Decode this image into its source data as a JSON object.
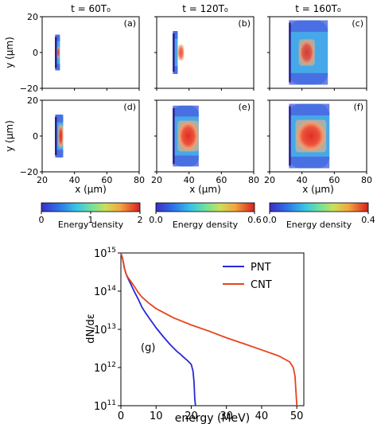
{
  "chart_data": [
    {
      "type": "heatmap",
      "columns": [
        {
          "title": "t = 60T₀",
          "colorbar": {
            "min_label": "0",
            "mid_label": "1",
            "max_label": "2",
            "label": "Energy density",
            "range": [
              0,
              2
            ]
          }
        },
        {
          "title": "t = 120T₀",
          "colorbar": {
            "min_label": "0.0",
            "max_label": "0.6",
            "label": "Energy density",
            "range": [
              0,
              0.6
            ]
          }
        },
        {
          "title": "t = 160T₀",
          "colorbar": {
            "min_label": "0.0",
            "max_label": "0.4",
            "label": "Energy density",
            "range": [
              0,
              0.4
            ]
          }
        }
      ],
      "panels": [
        {
          "label": "(a)",
          "row": 0,
          "col": 0,
          "target_x": [
            28,
            31
          ],
          "target_y": [
            -10,
            10
          ],
          "hot_x": [
            29,
            31
          ],
          "intensity": 0.45
        },
        {
          "label": "(b)",
          "row": 0,
          "col": 1,
          "target_x": [
            30,
            33
          ],
          "target_y": [
            -12,
            12
          ],
          "hot_x": [
            33,
            37
          ],
          "intensity": 0.6
        },
        {
          "label": "(c)",
          "row": 0,
          "col": 2,
          "target_x": [
            32,
            56
          ],
          "target_y": [
            -18,
            18
          ],
          "hot_x": [
            38,
            48
          ],
          "intensity": 0.75
        },
        {
          "label": "(d)",
          "row": 1,
          "col": 0,
          "target_x": [
            28,
            33
          ],
          "target_y": [
            -12,
            12
          ],
          "hot_x": [
            30,
            33
          ],
          "intensity": 0.95
        },
        {
          "label": "(e)",
          "row": 1,
          "col": 1,
          "target_x": [
            30,
            46
          ],
          "target_y": [
            -17,
            17
          ],
          "hot_x": [
            33,
            46
          ],
          "intensity": 0.95
        },
        {
          "label": "(f)",
          "row": 1,
          "col": 2,
          "target_x": [
            32,
            57
          ],
          "target_y": [
            -18,
            18
          ],
          "hot_x": [
            36,
            55
          ],
          "intensity": 0.95
        }
      ],
      "xlabel": "x (μm)",
      "ylabel": "y (μm)",
      "xlim": [
        20,
        80
      ],
      "ylim": [
        -20,
        20
      ],
      "xticks": [
        "20",
        "40",
        "60",
        "80"
      ],
      "yticks": [
        "20",
        "0",
        "−20"
      ]
    },
    {
      "type": "line",
      "label": "(g)",
      "xlabel": "energy (MeV)",
      "ylabel": "dN/dε",
      "xlim": [
        0,
        52
      ],
      "ylim": [
        100000000000.0,
        1000000000000000.0
      ],
      "yscale": "log",
      "xticks": [
        "0",
        "10",
        "20",
        "30",
        "40",
        "50"
      ],
      "yticks": [
        {
          "base": "10",
          "exp": "15"
        },
        {
          "base": "10",
          "exp": "14"
        },
        {
          "base": "10",
          "exp": "13"
        },
        {
          "base": "10",
          "exp": "12"
        },
        {
          "base": "10",
          "exp": "11"
        }
      ],
      "legend_position": "top-right",
      "series": [
        {
          "name": "PNT",
          "color": "#2828d6",
          "x": [
            0,
            0.5,
            1,
            1.5,
            2,
            3,
            4,
            5,
            6,
            7,
            8,
            10,
            12,
            14,
            16,
            17,
            18,
            19,
            20,
            20.5,
            20.8,
            21,
            21.2
          ],
          "y": [
            1000000000000000.0,
            700000000000000.0,
            400000000000000.0,
            280000000000000.0,
            220000000000000.0,
            140000000000000.0,
            90000000000000.0,
            60000000000000.0,
            38000000000000.0,
            27000000000000.0,
            20000000000000.0,
            11000000000000.0,
            6500000000000.0,
            4000000000000.0,
            2600000000000.0,
            2200000000000.0,
            1800000000000.0,
            1500000000000.0,
            1200000000000.0,
            800000000000.0,
            400000000000.0,
            150000000000.0,
            100000000000.0
          ]
        },
        {
          "name": "CNT",
          "color": "#e8431a",
          "x": [
            0,
            0.5,
            1,
            1.5,
            2,
            3,
            4,
            5,
            6,
            8,
            10,
            15,
            20,
            25,
            30,
            35,
            40,
            45,
            48,
            49,
            49.5,
            50
          ],
          "y": [
            1000000000000000.0,
            700000000000000.0,
            400000000000000.0,
            280000000000000.0,
            230000000000000.0,
            170000000000000.0,
            125000000000000.0,
            90000000000000.0,
            70000000000000.0,
            48000000000000.0,
            35000000000000.0,
            20000000000000.0,
            13000000000000.0,
            9000000000000.0,
            6000000000000.0,
            4200000000000.0,
            2900000000000.0,
            2000000000000.0,
            1400000000000.0,
            1000000000000.0,
            600000000000.0,
            100000000000.0
          ]
        }
      ]
    }
  ]
}
